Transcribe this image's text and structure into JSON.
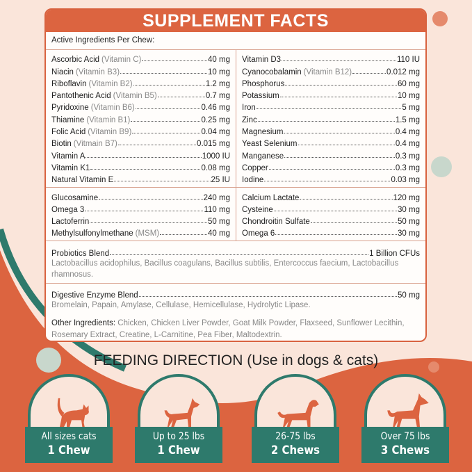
{
  "colors": {
    "accent": "#dc6440",
    "teal": "#2e7a6c",
    "background": "#fae5da"
  },
  "panel": {
    "title": "SUPPLEMENT FACTS",
    "active_label": "Active Ingredients Per Chew:",
    "left": [
      {
        "name": "Ascorbic Acid",
        "sub": "(Vitamin C)",
        "value": "40 mg"
      },
      {
        "name": "Niacin",
        "sub": "(Vitamin B3)",
        "value": "10 mg"
      },
      {
        "name": "Riboflavin",
        "sub": "(Vitamin B2)",
        "value": "1.2 mg"
      },
      {
        "name": "Pantothenic Acid",
        "sub": "(Vitamin B5)",
        "value": "0.7 mg"
      },
      {
        "name": "Pyridoxine",
        "sub": "(Vitamin B6)",
        "value": "0.46 mg"
      },
      {
        "name": "Thiamine",
        "sub": "(Vitamin B1)",
        "value": "0.25 mg"
      },
      {
        "name": "Folic Acid",
        "sub": "(Vitamin B9)",
        "value": "0.04 mg"
      },
      {
        "name": "Biotin",
        "sub": "(Vitmain B7)",
        "value": "0.015 mg"
      },
      {
        "name": "Vitamin A",
        "sub": "",
        "value": "1000 IU"
      },
      {
        "name": "Vitamin K1",
        "sub": "",
        "value": "0.08 mg"
      },
      {
        "name": "Natural Vitamin E",
        "sub": "",
        "value": "25 IU"
      }
    ],
    "right": [
      {
        "name": "Vitamin D3",
        "sub": "",
        "value": "110 IU"
      },
      {
        "name": "Cyanocobalamin",
        "sub": "(Vitamin B12)",
        "value": "0.012 mg"
      },
      {
        "name": "Phosphorus",
        "sub": "",
        "value": "60 mg"
      },
      {
        "name": "Potassium",
        "sub": "",
        "value": "10 mg"
      },
      {
        "name": "Iron",
        "sub": "",
        "value": "5 mg"
      },
      {
        "name": "Zinc",
        "sub": "",
        "value": "1.5 mg"
      },
      {
        "name": "Magnesium",
        "sub": "",
        "value": "0.4 mg"
      },
      {
        "name": "Yeast Selenium",
        "sub": "",
        "value": "0.4 mg"
      },
      {
        "name": "Manganese",
        "sub": "",
        "value": "0.3 mg"
      },
      {
        "name": "Copper",
        "sub": "",
        "value": "0.3 mg"
      },
      {
        "name": "Iodine",
        "sub": "",
        "value": "0.03 mg"
      }
    ],
    "left2": [
      {
        "name": "Glucosamine",
        "sub": "",
        "value": "240 mg"
      },
      {
        "name": "Omega 3",
        "sub": "",
        "value": "110 mg"
      },
      {
        "name": "Lactoferrin",
        "sub": "",
        "value": "50 mg"
      },
      {
        "name": "Methylsulfonylmethane",
        "sub": "(MSM)",
        "value": "40 mg"
      }
    ],
    "right2": [
      {
        "name": "Calcium Lactate",
        "sub": "",
        "value": "120 mg"
      },
      {
        "name": "Cysteine",
        "sub": "",
        "value": "30 mg"
      },
      {
        "name": "Chondroitin Sulfate",
        "sub": "",
        "value": "50 mg"
      },
      {
        "name": "Omega 6",
        "sub": "",
        "value": "30 mg"
      }
    ],
    "probiotics": {
      "name": "Probiotics Blend",
      "value": "1 Billion CFUs",
      "list": "Lactobacillus acidophilus, Bacillus coagulans, Bacillus subtilis, Entercoccus faecium, Lactobacillus rhamnosus."
    },
    "enzyme": {
      "name": "Digestive Enzyme Blend",
      "value": "50 mg",
      "list": "Bromelain, Papain, Amylase, Cellulase, Hemicellulase, Hydrolytic Lipase."
    },
    "other": {
      "label": "Other Ingredients:",
      "text": " Chicken, Chicken Liver Powder, Goat Milk Powder, Flaxseed, Sunflower Lecithin, Rosemary Extract, Creatine, L-Carnitine, Pea Fiber, Maltodextrin."
    }
  },
  "feeding": {
    "title": "FEEDING DIRECTION (Use in dogs & cats)",
    "cards": [
      {
        "icon": "cat-icon",
        "size": "All sizes cats",
        "dose": "1 Chew"
      },
      {
        "icon": "small-dog-icon",
        "size": "Up to 25 lbs",
        "dose": "1 Chew"
      },
      {
        "icon": "medium-dog-icon",
        "size": "26-75 lbs",
        "dose": "2 Chews"
      },
      {
        "icon": "large-dog-icon",
        "size": "Over 75 lbs",
        "dose": "3 Chews"
      }
    ]
  }
}
